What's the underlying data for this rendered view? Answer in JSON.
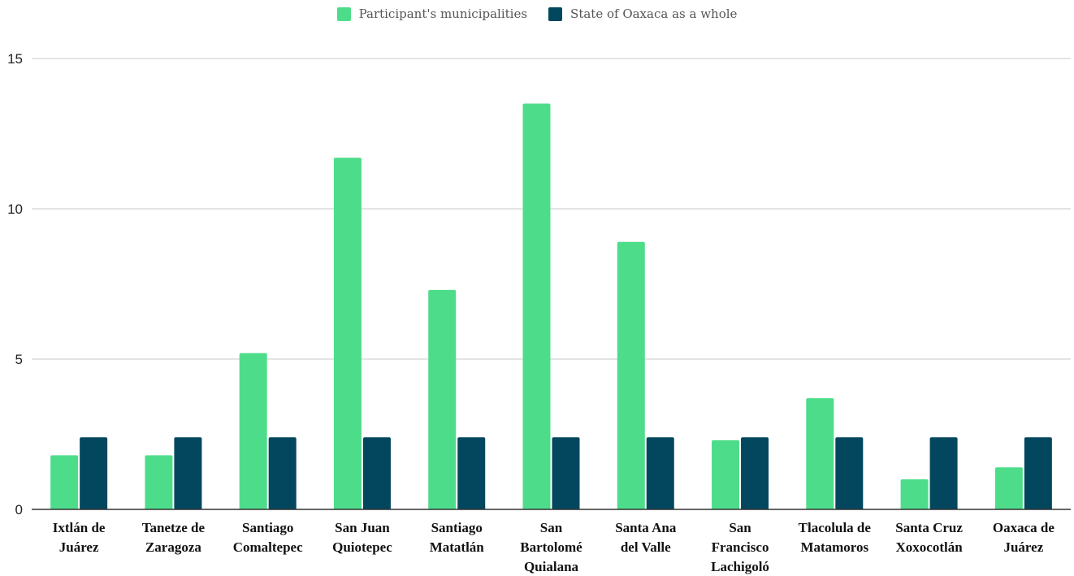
{
  "chart_data": {
    "type": "bar",
    "categories": [
      [
        "Ixtlán de",
        "Juárez"
      ],
      [
        "Tanetze de",
        "Zaragoza"
      ],
      [
        "Santiago",
        "Comaltepec"
      ],
      [
        "San Juan",
        "Quiotepec"
      ],
      [
        "Santiago",
        "Matatlán"
      ],
      [
        "San",
        "Bartolomé",
        "Quialana"
      ],
      [
        "Santa Ana",
        "del Valle"
      ],
      [
        "San",
        "Francisco",
        "Lachigoló"
      ],
      [
        "Tlacolula de",
        "Matamoros"
      ],
      [
        "Santa Cruz",
        "Xoxocotlán"
      ],
      [
        "Oaxaca de",
        "Juárez"
      ]
    ],
    "series": [
      {
        "name": "Participant's municipalities",
        "color": "#4ddd8a",
        "values": [
          1.8,
          1.8,
          5.2,
          11.7,
          7.3,
          13.5,
          8.9,
          2.3,
          3.7,
          1.0,
          1.4
        ]
      },
      {
        "name": "State of Oaxaca as a whole",
        "color": "#02475e",
        "values": [
          2.4,
          2.4,
          2.4,
          2.4,
          2.4,
          2.4,
          2.4,
          2.4,
          2.4,
          2.4,
          2.4
        ]
      }
    ],
    "yticks": [
      0,
      5,
      10,
      15
    ],
    "ylim": [
      0,
      15
    ],
    "grid": true,
    "legend_position": "top"
  }
}
